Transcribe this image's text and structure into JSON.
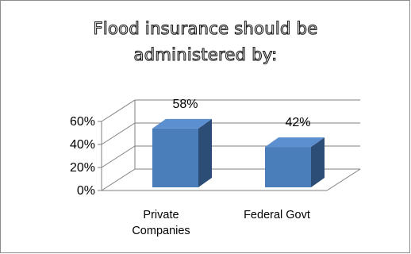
{
  "chart_data": {
    "type": "bar",
    "title": "Flood insurance should be administered by:",
    "title_lines": [
      "Flood insurance should be",
      "administered by:"
    ],
    "categories": [
      "Private Companies",
      "Federal Govt"
    ],
    "category_lines": [
      [
        "Private",
        "Companies"
      ],
      [
        "Federal Govt"
      ]
    ],
    "values": [
      58,
      42
    ],
    "data_labels": [
      "58%",
      "42%"
    ],
    "ylim": [
      0,
      60
    ],
    "yticks": [
      0,
      20,
      40,
      60
    ],
    "ytick_labels": [
      "0%",
      "20%",
      "40%",
      "60%"
    ],
    "grid": true,
    "legend": "none",
    "style": "3d-column",
    "colors": {
      "bar_front": "#4a7ebb",
      "bar_side": "#2c4d75",
      "bar_top": "#5b8fd0",
      "grid": "#7f7f7f"
    }
  }
}
